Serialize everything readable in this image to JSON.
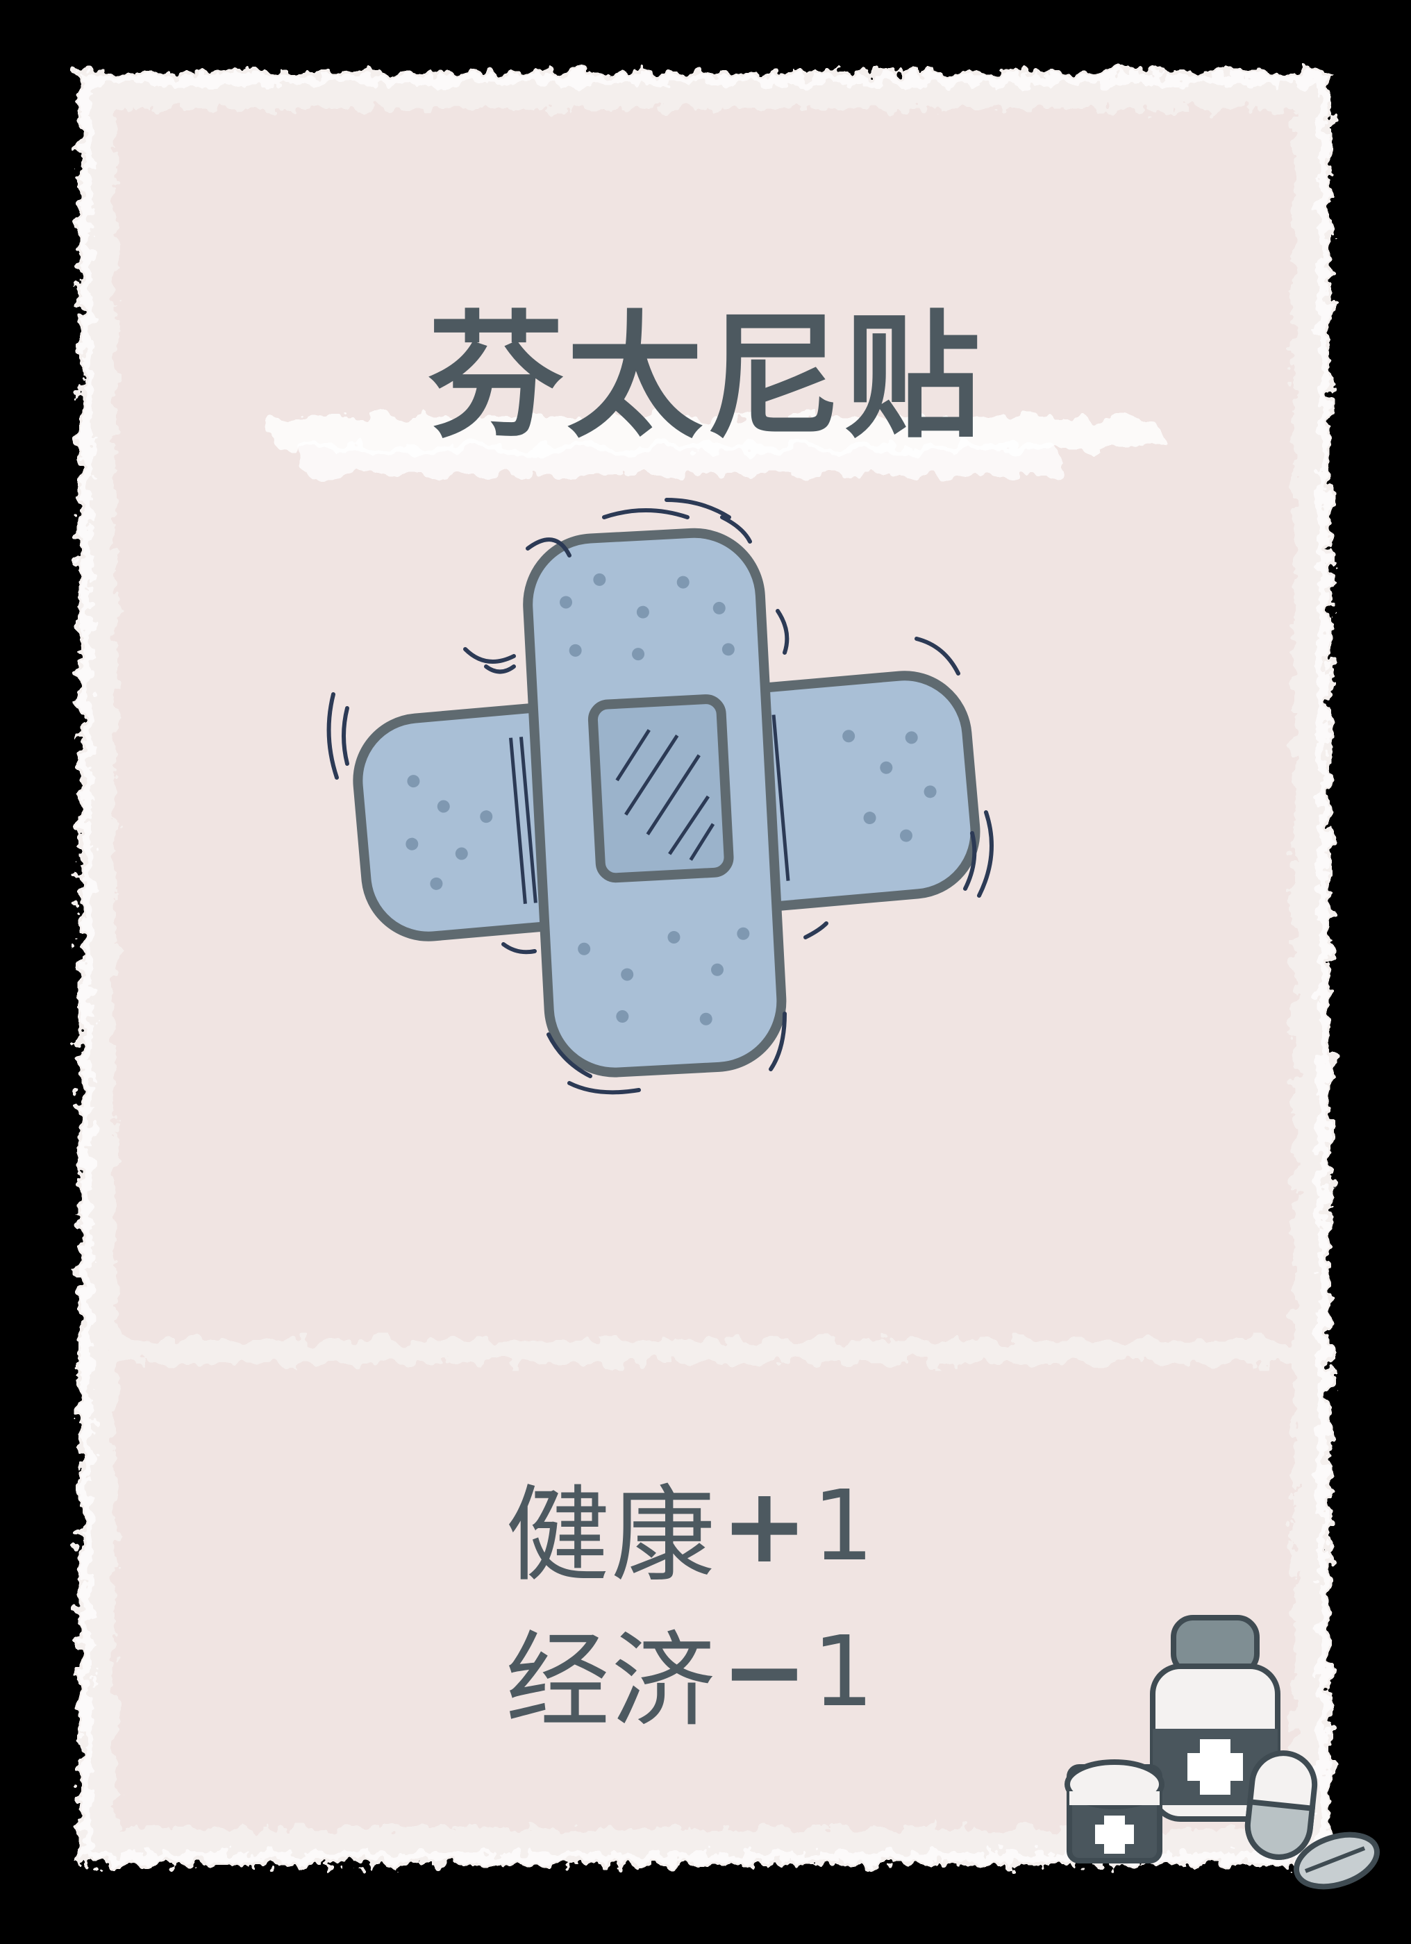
{
  "card": {
    "title": "芬太尼贴",
    "art_icon": "bandage-icon",
    "corner_icon": "medicine-bottles-icon",
    "background_color": "#f0e4e2",
    "ink_color": "#4d5960",
    "bandage_color": "#a9bfd6",
    "effects": [
      {
        "label": "健康",
        "sign": "+",
        "value": "1"
      },
      {
        "label": "经济",
        "sign": "−",
        "value": "1"
      }
    ]
  }
}
